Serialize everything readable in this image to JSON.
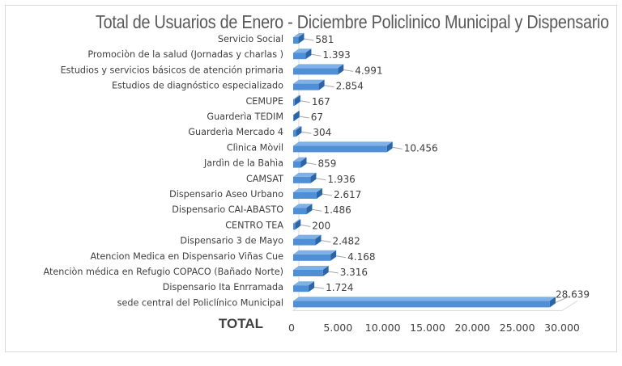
{
  "chart_data": {
    "type": "bar",
    "orientation": "horizontal",
    "title": "Total  de Usuarios de Enero - Diciembre  Policlinico Municipal y Dispensario",
    "ylabel": "TOTAL",
    "categories": [
      "Servicio Social",
      "Promociòn de la salud  (Jornadas y charlas )",
      "Estudios y servicios básicos de atención primaria",
      "Estudios de diagnóstico especializado",
      "CEMUPE",
      "Guarderìa TEDIM",
      "Guarderìa Mercado 4",
      "Clìnica Mòvil",
      "Jardìn de la Bahìa",
      "CAMSAT",
      "Dispensario Aseo Urbano",
      "Dispensario CAI-ABASTO",
      "CENTRO TEA",
      "Dispensario 3 de Mayo",
      "Atencion Medica en Dispensario Viñas Cue",
      "Atenciòn médica en Refugio COPACO      (Bañado Norte)",
      "Dispensario Ita Enrramada",
      "sede central del  Policlínico Municipal"
    ],
    "values": [
      581,
      1393,
      4991,
      2854,
      167,
      67,
      304,
      10456,
      859,
      1936,
      2617,
      1486,
      200,
      2482,
      4168,
      3316,
      1724,
      28639
    ],
    "value_labels": [
      "581",
      "1.393",
      "4.991",
      "2.854",
      "167",
      "67",
      "304",
      "10.456",
      "859",
      "1.936",
      "2.617",
      "1.486",
      "200",
      "2.482",
      "4.168",
      "3.316",
      "1.724",
      "28.639"
    ],
    "xlim": [
      0,
      30000
    ],
    "ticks": [
      "0",
      "5.000",
      "10.000",
      "15.000",
      "20.000",
      "25.000",
      "30.000"
    ],
    "bar_color": "#4f8fd6",
    "legend": "none",
    "grid": false
  }
}
